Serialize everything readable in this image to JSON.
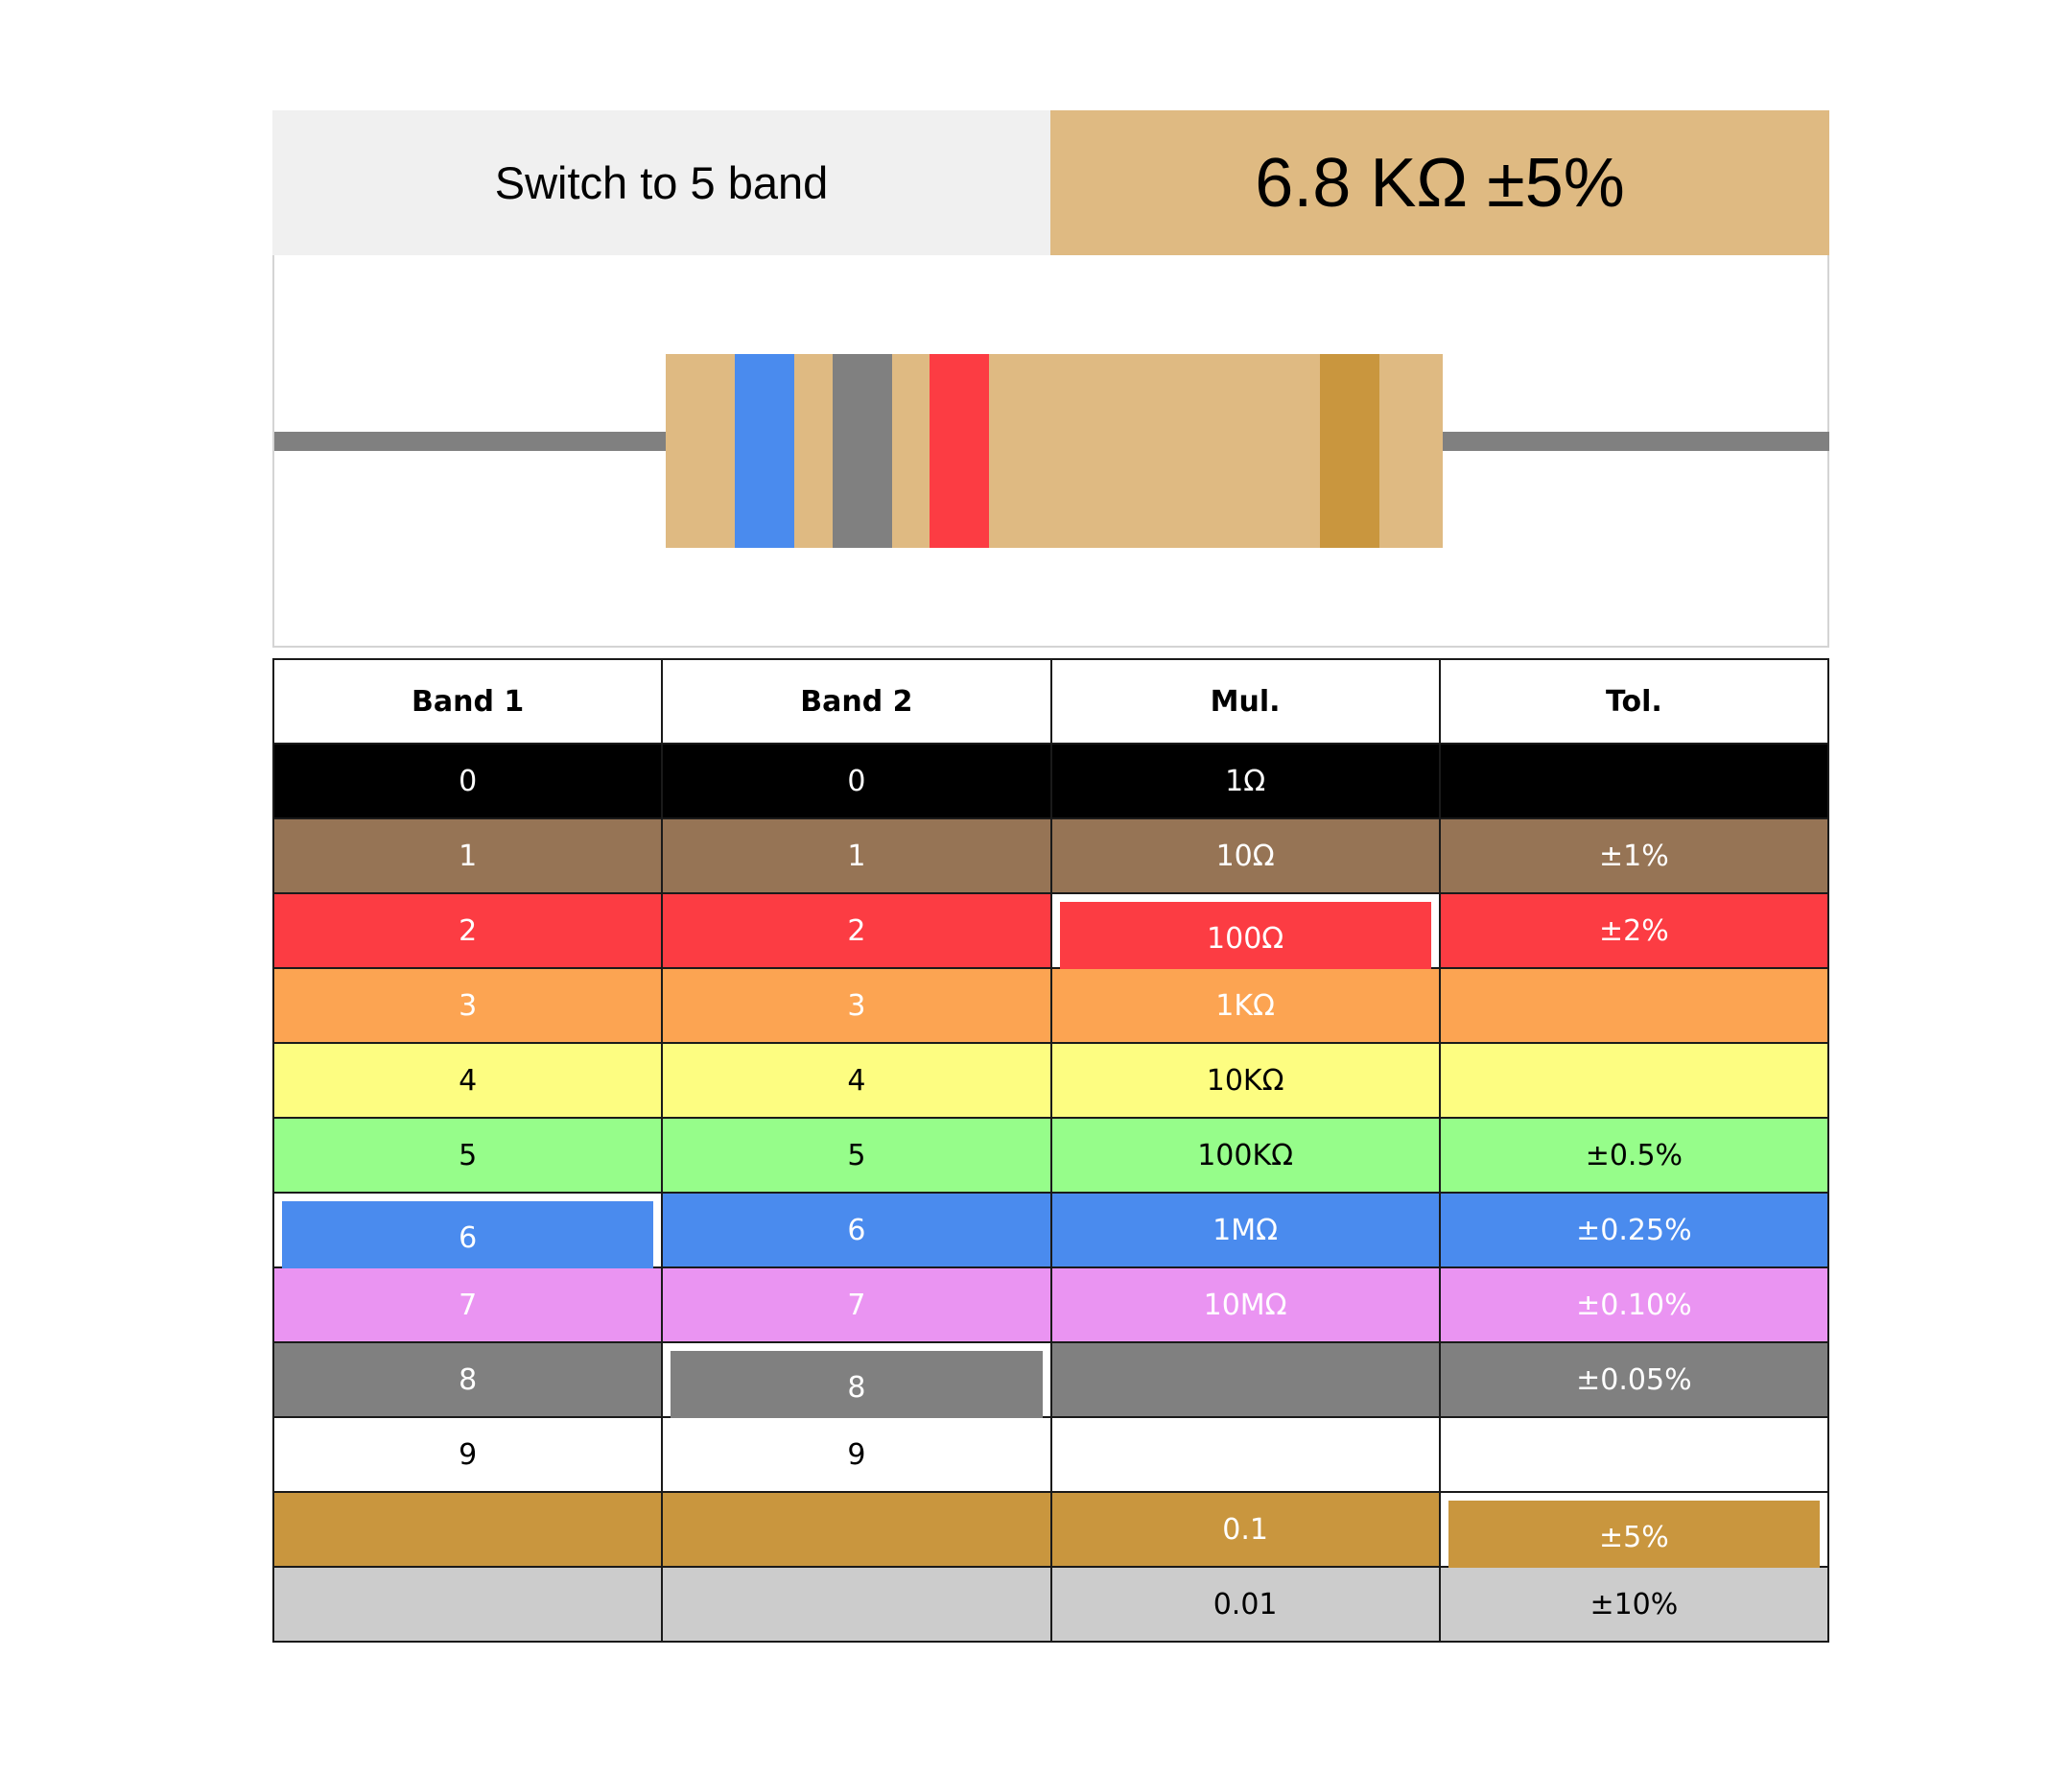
{
  "header": {
    "switch_label": "Switch to 5 band",
    "value_text": "6.8 KΩ ±5%"
  },
  "resistor": {
    "body_color": "#dfba82",
    "lead_color": "#808080",
    "bands": [
      {
        "name": "band-1",
        "color": "#4a8bee",
        "value": "6"
      },
      {
        "name": "band-2",
        "color": "#808080",
        "value": "8"
      },
      {
        "name": "multiplier-band",
        "color": "#fc3c43",
        "value": "100Ω"
      },
      {
        "name": "tolerance-band",
        "color": "#c9963e",
        "value": "±5%"
      }
    ]
  },
  "table": {
    "headers": [
      "Band 1",
      "Band 2",
      "Mul.",
      "Tol."
    ],
    "rows": [
      {
        "color_name": "black",
        "bg": "#000000",
        "text": "light",
        "band1": "0",
        "band2": "0",
        "mul": "1Ω",
        "tol": ""
      },
      {
        "color_name": "brown",
        "bg": "#967455",
        "text": "light",
        "band1": "1",
        "band2": "1",
        "mul": "10Ω",
        "tol": "±1%"
      },
      {
        "color_name": "red",
        "bg": "#fc3c43",
        "text": "light",
        "band1": "2",
        "band2": "2",
        "mul": "100Ω",
        "tol": "±2%"
      },
      {
        "color_name": "orange",
        "bg": "#fca452",
        "text": "light",
        "band1": "3",
        "band2": "3",
        "mul": "1KΩ",
        "tol": ""
      },
      {
        "color_name": "yellow",
        "bg": "#fdfd81",
        "text": "dark",
        "band1": "4",
        "band2": "4",
        "mul": "10KΩ",
        "tol": ""
      },
      {
        "color_name": "green",
        "bg": "#96fd8a",
        "text": "dark",
        "band1": "5",
        "band2": "5",
        "mul": "100KΩ",
        "tol": "±0.5%"
      },
      {
        "color_name": "blue",
        "bg": "#4a8bee",
        "text": "light",
        "band1": "6",
        "band2": "6",
        "mul": "1MΩ",
        "tol": "±0.25%"
      },
      {
        "color_name": "violet",
        "bg": "#ea94f2",
        "text": "light",
        "band1": "7",
        "band2": "7",
        "mul": "10MΩ",
        "tol": "±0.10%"
      },
      {
        "color_name": "gray",
        "bg": "#808080",
        "text": "light",
        "band1": "8",
        "band2": "8",
        "mul": "",
        "tol": "±0.05%"
      },
      {
        "color_name": "white",
        "bg": "#ffffff",
        "text": "dark",
        "band1": "9",
        "band2": "9",
        "mul": "",
        "tol": ""
      },
      {
        "color_name": "gold",
        "bg": "#c9963e",
        "text": "light",
        "band1": "",
        "band2": "",
        "mul": "0.1",
        "tol": "±5%"
      },
      {
        "color_name": "silver",
        "bg": "#cccccc",
        "text": "dark",
        "band1": "",
        "band2": "",
        "mul": "0.01",
        "tol": "±10%"
      }
    ],
    "selected": {
      "band1": "blue",
      "band2": "gray",
      "mul": "red",
      "tol": "gold"
    }
  }
}
